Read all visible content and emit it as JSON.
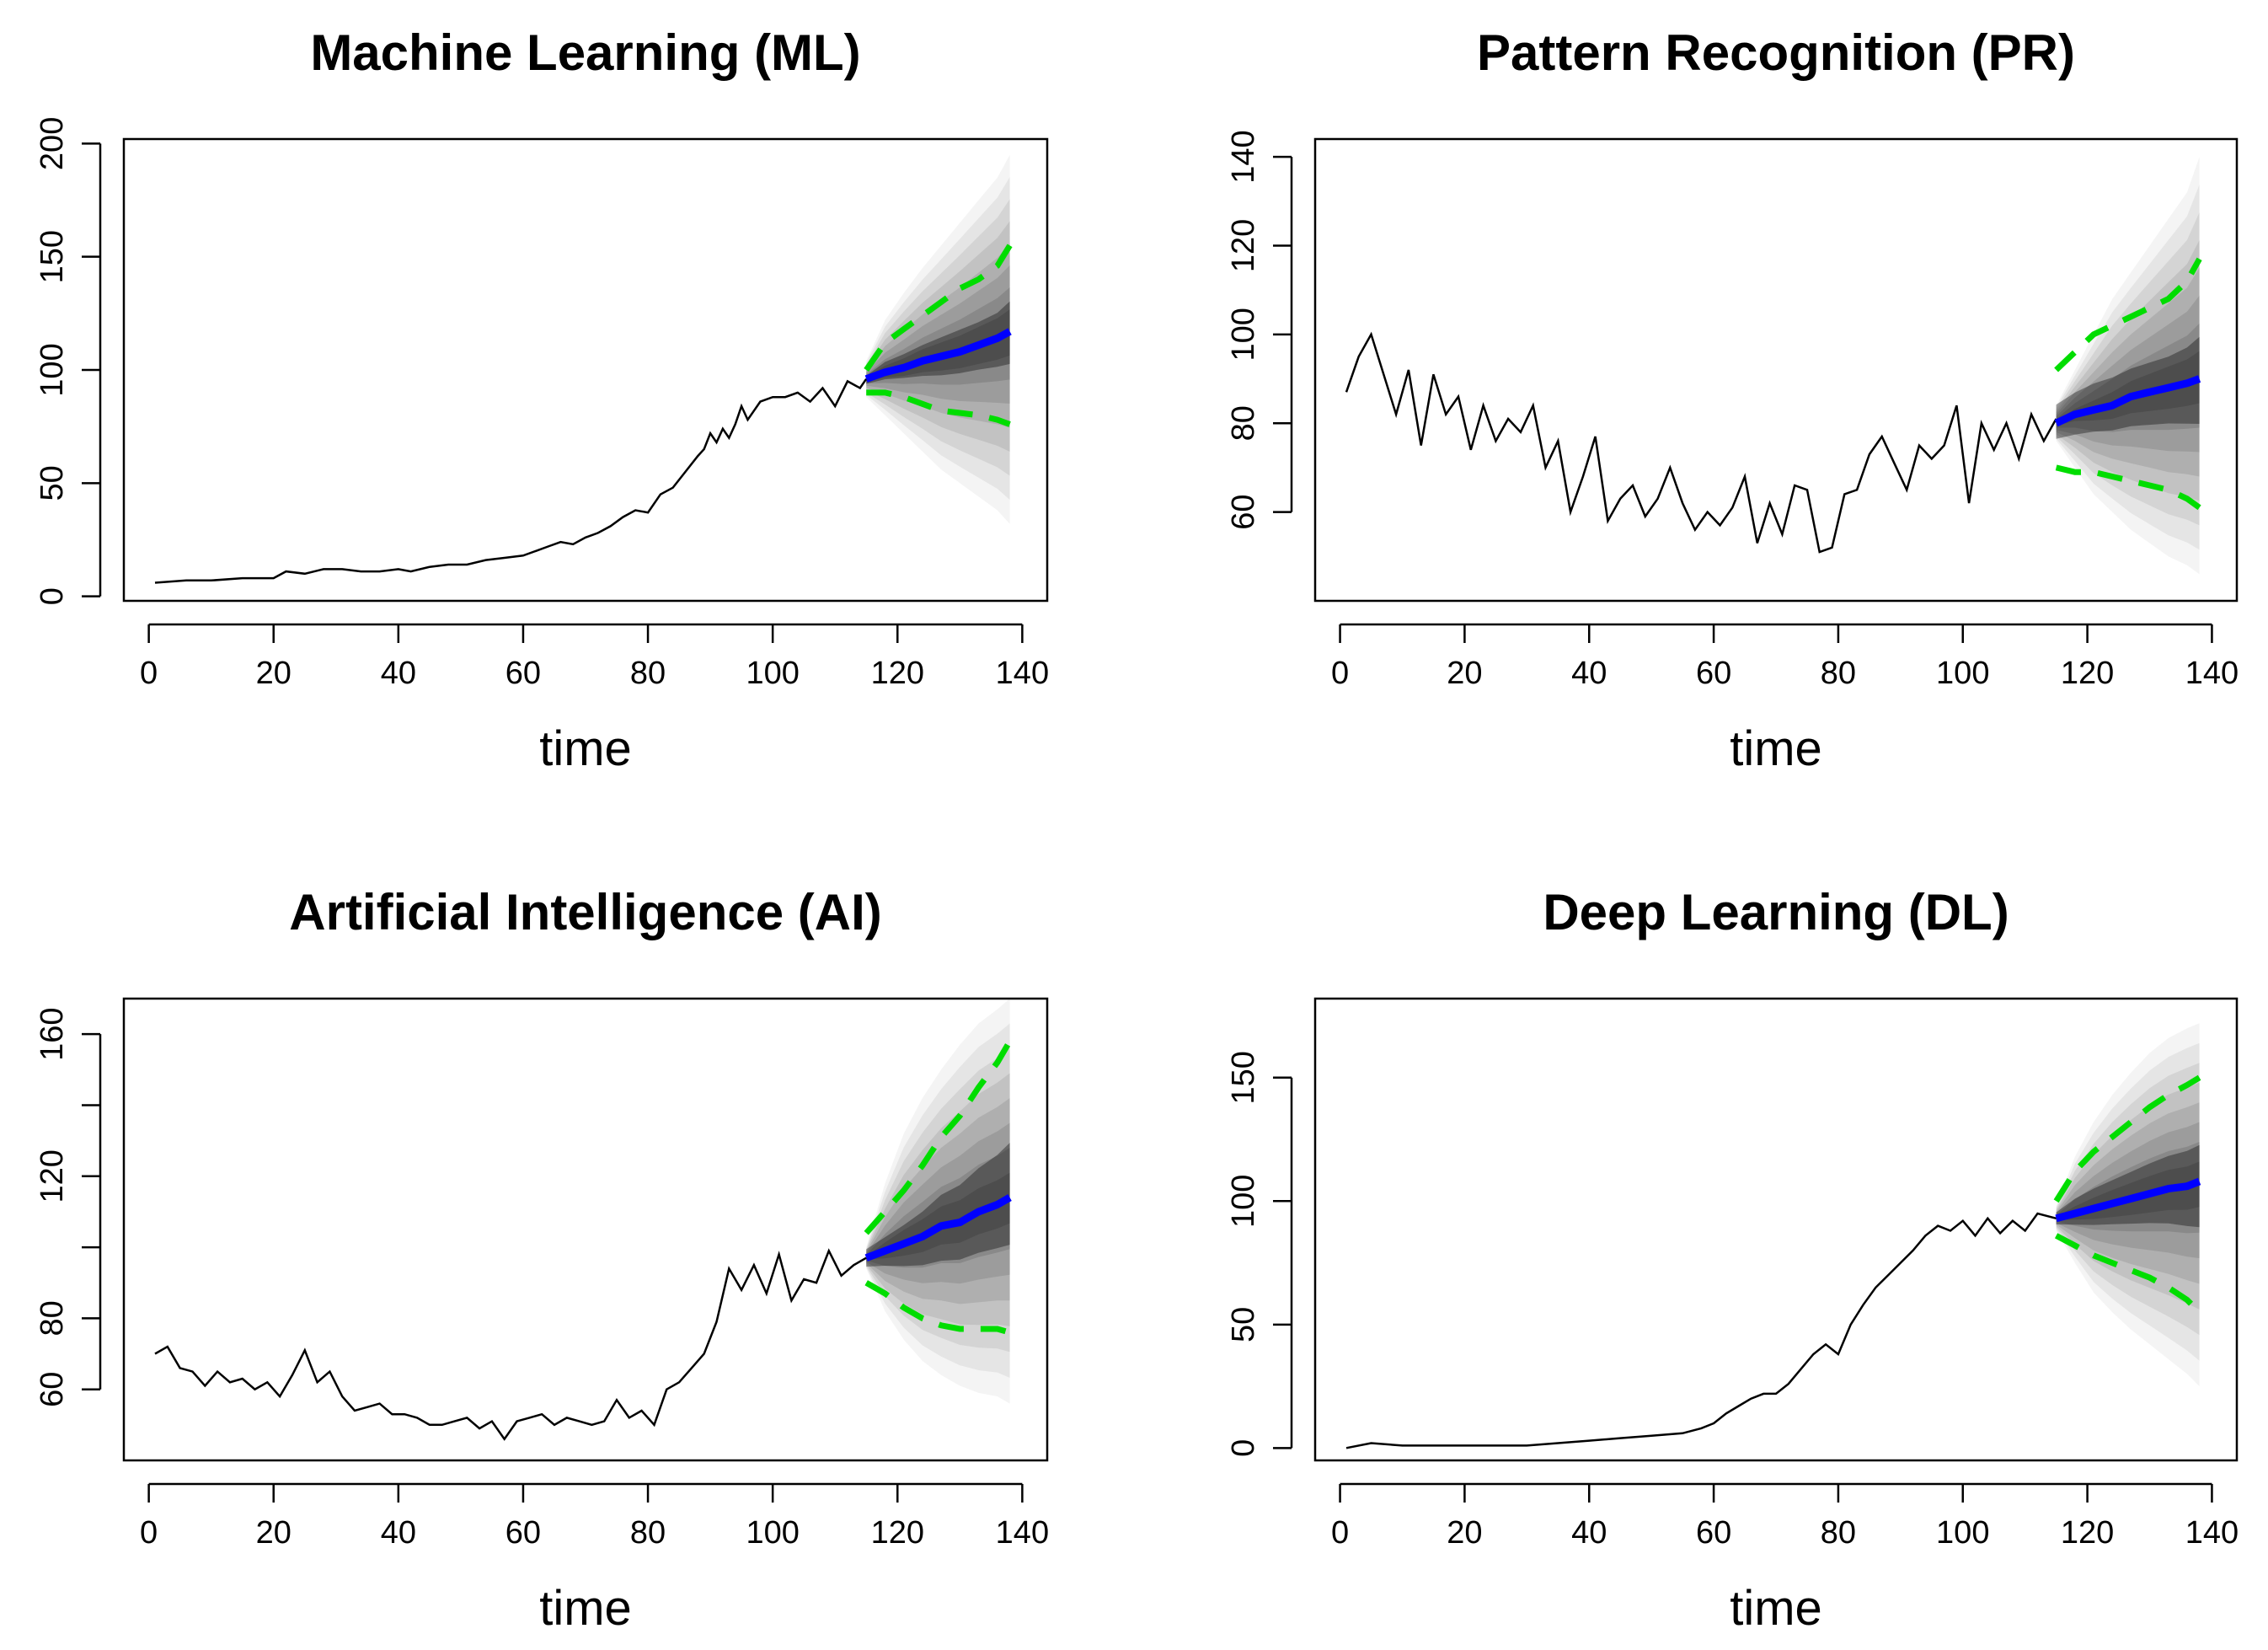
{
  "chart_data": [
    {
      "type": "line",
      "title": "Machine Learning (ML)",
      "xlabel": "time",
      "ylabel": "",
      "xlim": [
        -4,
        144
      ],
      "ylim": [
        -2,
        202
      ],
      "xticks": [
        0,
        20,
        40,
        60,
        80,
        100,
        120,
        140
      ],
      "yticks": [
        0,
        50,
        100,
        150,
        200
      ],
      "yticks_labeled": [
        0,
        50,
        100,
        150,
        200
      ],
      "colors": {
        "observed": "#000000",
        "forecast": "#0000ff",
        "interval": "#00dd00",
        "fan": "#000000"
      },
      "observed": {
        "x": [
          1,
          6,
          10,
          15,
          20,
          22,
          25,
          28,
          31,
          34,
          37,
          40,
          42,
          45,
          48,
          51,
          54,
          57,
          60,
          62,
          64,
          66,
          68,
          70,
          72,
          74,
          76,
          78,
          80,
          82,
          84,
          86,
          88,
          89,
          90,
          91,
          92,
          93,
          94,
          95,
          96,
          97,
          98,
          100,
          102,
          104,
          106,
          108,
          110,
          112,
          114,
          115
        ],
        "values": [
          6,
          7,
          7,
          8,
          8,
          11,
          10,
          12,
          12,
          11,
          11,
          12,
          11,
          13,
          14,
          14,
          16,
          17,
          18,
          20,
          22,
          24,
          23,
          26,
          28,
          31,
          35,
          38,
          37,
          45,
          48,
          55,
          62,
          65,
          72,
          68,
          74,
          70,
          76,
          84,
          78,
          82,
          86,
          88,
          88,
          90,
          86,
          92,
          84,
          95,
          92,
          96
        ]
      },
      "forecast": {
        "x": [
          115,
          118,
          121,
          124,
          127,
          130,
          133,
          136,
          138
        ],
        "center": [
          96,
          99,
          101,
          104,
          106,
          108,
          111,
          114,
          117
        ],
        "upper": [
          100,
          112,
          118,
          124,
          130,
          136,
          140,
          146,
          155
        ],
        "lower": [
          90,
          90,
          88,
          85,
          82,
          81,
          80,
          78,
          76
        ],
        "fan_upper": [
          104,
          122,
          134,
          145,
          155,
          165,
          175,
          185,
          195
        ],
        "fan_lower": [
          88,
          80,
          72,
          64,
          56,
          50,
          44,
          38,
          32
        ]
      }
    },
    {
      "type": "line",
      "title": "Pattern Recognition (PR)",
      "xlabel": "time",
      "ylabel": "",
      "xlim": [
        -4,
        144
      ],
      "ylim": [
        40,
        144
      ],
      "xticks": [
        0,
        20,
        40,
        60,
        80,
        100,
        120,
        140
      ],
      "yticks": [
        60,
        80,
        100,
        120,
        140
      ],
      "yticks_labeled": [
        60,
        80,
        100,
        120,
        140
      ],
      "colors": {
        "observed": "#000000",
        "forecast": "#0000ff",
        "interval": "#00dd00",
        "fan": "#000000"
      },
      "observed": {
        "x": [
          1,
          3,
          5,
          7,
          9,
          11,
          13,
          15,
          17,
          19,
          21,
          23,
          25,
          27,
          29,
          31,
          33,
          35,
          37,
          39,
          41,
          43,
          45,
          47,
          49,
          51,
          53,
          55,
          57,
          59,
          61,
          63,
          65,
          67,
          69,
          71,
          73,
          75,
          77,
          79,
          81,
          83,
          85,
          87,
          89,
          91,
          93,
          95,
          97,
          99,
          101,
          103,
          105,
          107,
          109,
          111,
          113,
          115
        ],
        "values": [
          87,
          95,
          100,
          91,
          82,
          92,
          75,
          91,
          82,
          86,
          74,
          84,
          76,
          81,
          78,
          84,
          70,
          76,
          60,
          68,
          77,
          58,
          63,
          66,
          59,
          63,
          70,
          62,
          56,
          60,
          57,
          61,
          68,
          53,
          62,
          55,
          66,
          65,
          51,
          52,
          64,
          65,
          73,
          77,
          71,
          65,
          75,
          72,
          75,
          84,
          62,
          80,
          74,
          80,
          72,
          82,
          76,
          81
        ]
      },
      "forecast": {
        "x": [
          115,
          118,
          121,
          124,
          127,
          130,
          133,
          136,
          138
        ],
        "center": [
          80,
          82,
          83,
          84,
          86,
          87,
          88,
          89,
          90
        ],
        "upper": [
          92,
          96,
          100,
          102,
          104,
          106,
          108,
          112,
          117
        ],
        "lower": [
          70,
          69,
          69,
          68,
          67,
          66,
          65,
          63,
          61
        ],
        "fan_upper": [
          84,
          92,
          100,
          108,
          114,
          120,
          126,
          132,
          140
        ],
        "fan_lower": [
          76,
          70,
          64,
          60,
          56,
          53,
          50,
          48,
          46
        ]
      }
    },
    {
      "type": "line",
      "title": "Artificial Intelligence (AI)",
      "xlabel": "time",
      "ylabel": "",
      "xlim": [
        -4,
        144
      ],
      "ylim": [
        40,
        170
      ],
      "xticks": [
        0,
        20,
        40,
        60,
        80,
        100,
        120,
        140
      ],
      "yticks": [
        60,
        80,
        100,
        120,
        140,
        160
      ],
      "yticks_labeled": [
        60,
        80,
        120,
        160
      ],
      "colors": {
        "observed": "#000000",
        "forecast": "#0000ff",
        "interval": "#00dd00",
        "fan": "#000000"
      },
      "observed": {
        "x": [
          1,
          3,
          5,
          7,
          9,
          11,
          13,
          15,
          17,
          19,
          21,
          23,
          25,
          27,
          29,
          31,
          33,
          35,
          37,
          39,
          41,
          43,
          45,
          47,
          49,
          51,
          53,
          55,
          57,
          59,
          61,
          63,
          65,
          67,
          69,
          71,
          73,
          75,
          77,
          79,
          81,
          83,
          85,
          87,
          89,
          91,
          93,
          95,
          97,
          99,
          101,
          103,
          105,
          107,
          109,
          111,
          113,
          115
        ],
        "values": [
          70,
          72,
          66,
          65,
          61,
          65,
          62,
          63,
          60,
          62,
          58,
          64,
          71,
          62,
          65,
          58,
          54,
          55,
          56,
          53,
          53,
          52,
          50,
          50,
          51,
          52,
          49,
          51,
          46,
          51,
          52,
          53,
          50,
          52,
          51,
          50,
          51,
          57,
          52,
          54,
          50,
          60,
          62,
          66,
          70,
          79,
          94,
          88,
          95,
          87,
          98,
          85,
          91,
          90,
          99,
          92,
          95,
          97
        ]
      },
      "forecast": {
        "x": [
          115,
          118,
          121,
          124,
          127,
          130,
          133,
          136,
          138
        ],
        "center": [
          97,
          99,
          101,
          103,
          106,
          107,
          110,
          112,
          114
        ],
        "upper": [
          104,
          110,
          116,
          123,
          131,
          137,
          145,
          152,
          158
        ],
        "lower": [
          90,
          87,
          83,
          80,
          78,
          77,
          77,
          77,
          76
        ],
        "fan_upper": [
          100,
          118,
          132,
          142,
          150,
          157,
          163,
          167,
          170
        ],
        "fan_lower": [
          94,
          82,
          74,
          68,
          64,
          61,
          59,
          58,
          56
        ]
      }
    },
    {
      "type": "line",
      "title": "Deep Learning (DL)",
      "xlabel": "time",
      "ylabel": "",
      "xlim": [
        -4,
        144
      ],
      "ylim": [
        -5,
        182
      ],
      "xticks": [
        0,
        20,
        40,
        60,
        80,
        100,
        120,
        140
      ],
      "yticks": [
        0,
        50,
        100,
        150
      ],
      "yticks_labeled": [
        0,
        50,
        100,
        150
      ],
      "colors": {
        "observed": "#000000",
        "forecast": "#0000ff",
        "interval": "#00dd00",
        "fan": "#000000"
      },
      "observed": {
        "x": [
          1,
          5,
          10,
          15,
          20,
          25,
          30,
          35,
          40,
          45,
          50,
          55,
          58,
          60,
          62,
          64,
          66,
          68,
          70,
          72,
          74,
          76,
          78,
          80,
          82,
          84,
          86,
          88,
          90,
          92,
          94,
          96,
          98,
          100,
          102,
          104,
          106,
          108,
          110,
          112,
          115
        ],
        "values": [
          0,
          2,
          1,
          1,
          1,
          1,
          1,
          2,
          3,
          4,
          5,
          6,
          8,
          10,
          14,
          17,
          20,
          22,
          22,
          26,
          32,
          38,
          42,
          38,
          50,
          58,
          65,
          70,
          75,
          80,
          86,
          90,
          88,
          92,
          86,
          93,
          87,
          92,
          88,
          95,
          93
        ]
      },
      "forecast": {
        "x": [
          115,
          118,
          121,
          124,
          127,
          130,
          133,
          136,
          138
        ],
        "center": [
          93,
          95,
          97,
          99,
          101,
          103,
          105,
          106,
          108
        ],
        "upper": [
          100,
          112,
          120,
          126,
          132,
          138,
          143,
          147,
          150
        ],
        "lower": [
          86,
          82,
          78,
          75,
          72,
          69,
          65,
          60,
          55
        ],
        "fan_upper": [
          98,
          118,
          132,
          143,
          152,
          160,
          166,
          170,
          172
        ],
        "fan_lower": [
          88,
          75,
          63,
          55,
          48,
          42,
          36,
          30,
          25
        ]
      }
    }
  ]
}
